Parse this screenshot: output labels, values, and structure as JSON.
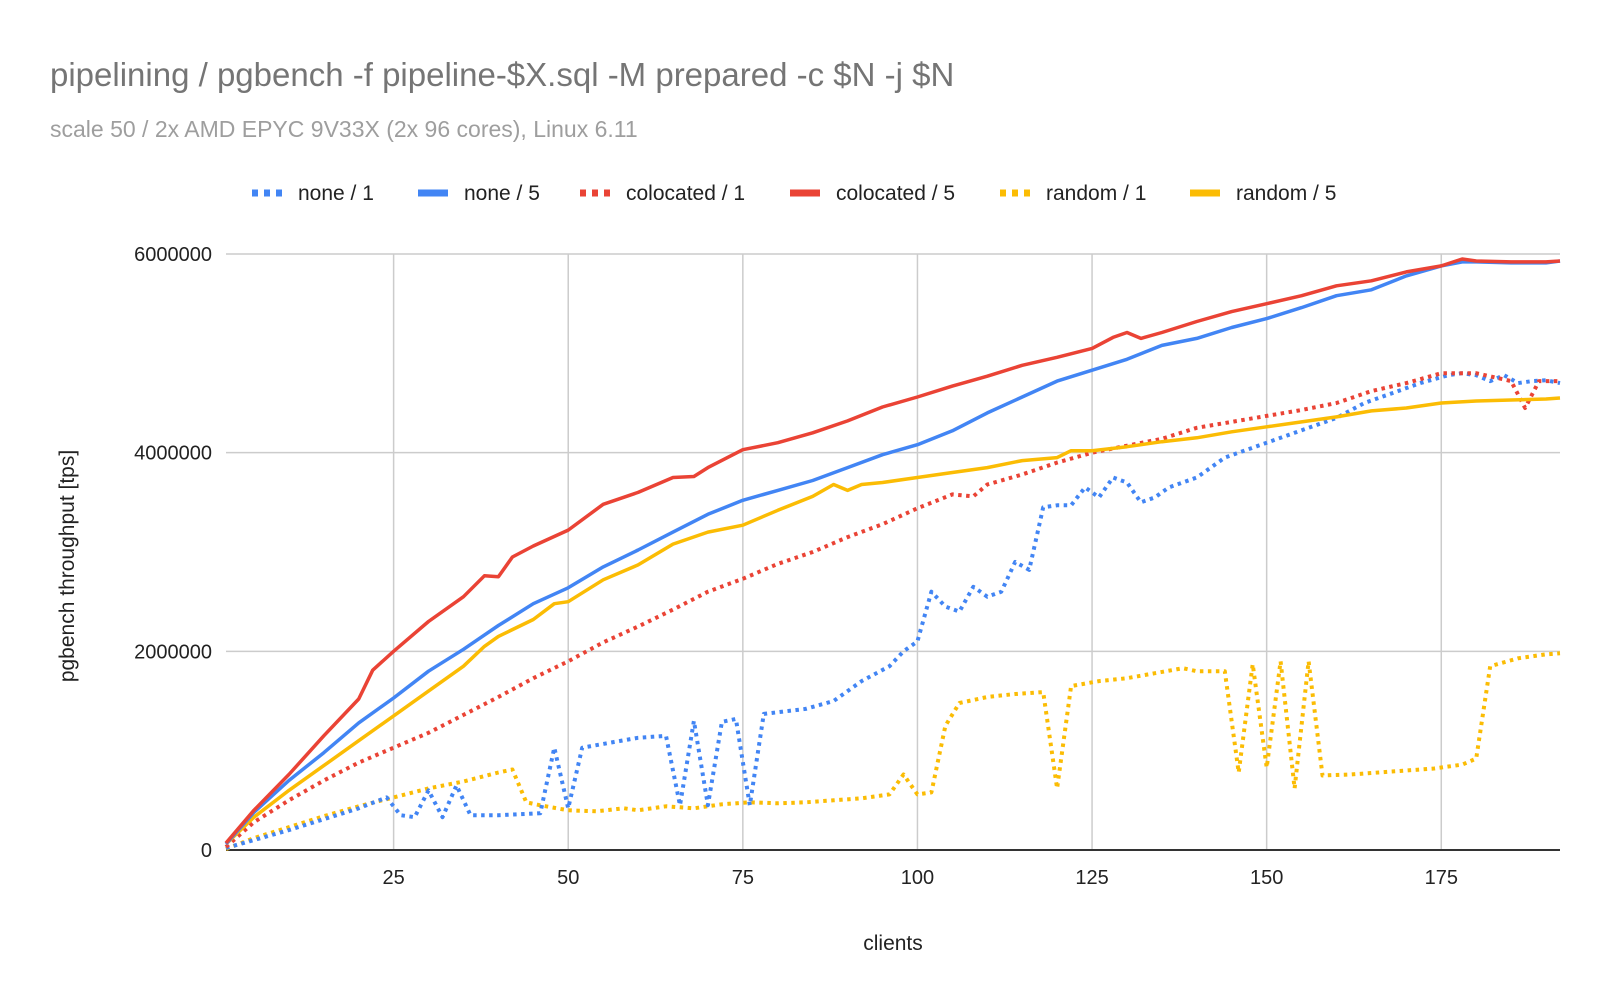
{
  "chart_data": {
    "type": "line",
    "title": "pipelining / pgbench -f pipeline-$X.sql -M prepared -c $N -j $N",
    "subtitle": "scale 50 / 2x AMD EPYC 9V33X (2x 96 cores), Linux 6.11",
    "xlabel": "clients",
    "ylabel": "pgbench throughput [tps]",
    "xlim": [
      1,
      192
    ],
    "ylim": [
      0,
      6000000
    ],
    "x_ticks": [
      25,
      50,
      75,
      100,
      125,
      150,
      175
    ],
    "x_tick_labels": [
      "25",
      "50",
      "75",
      "100",
      "125",
      "150",
      "175"
    ],
    "y_ticks": [
      0,
      2000000,
      4000000,
      6000000
    ],
    "y_tick_labels": [
      "0",
      "2000000",
      "4000000",
      "6000000"
    ],
    "grid": true,
    "legend_position": "top",
    "series": [
      {
        "name": "none / 1",
        "color": "#4285f4",
        "style": "dotted",
        "points": [
          [
            1,
            20000
          ],
          [
            10,
            200000
          ],
          [
            20,
            420000
          ],
          [
            24,
            530000
          ],
          [
            26,
            350000
          ],
          [
            28,
            330000
          ],
          [
            30,
            600000
          ],
          [
            32,
            330000
          ],
          [
            34,
            650000
          ],
          [
            36,
            350000
          ],
          [
            40,
            350000
          ],
          [
            46,
            370000
          ],
          [
            48,
            1030000
          ],
          [
            50,
            420000
          ],
          [
            52,
            1030000
          ],
          [
            56,
            1080000
          ],
          [
            60,
            1130000
          ],
          [
            64,
            1150000
          ],
          [
            66,
            450000
          ],
          [
            68,
            1300000
          ],
          [
            70,
            450000
          ],
          [
            72,
            1290000
          ],
          [
            74,
            1320000
          ],
          [
            76,
            450000
          ],
          [
            78,
            1370000
          ],
          [
            84,
            1420000
          ],
          [
            88,
            1500000
          ],
          [
            92,
            1700000
          ],
          [
            96,
            1850000
          ],
          [
            98,
            2000000
          ],
          [
            100,
            2100000
          ],
          [
            102,
            2600000
          ],
          [
            104,
            2450000
          ],
          [
            106,
            2400000
          ],
          [
            108,
            2650000
          ],
          [
            110,
            2550000
          ],
          [
            112,
            2600000
          ],
          [
            114,
            2900000
          ],
          [
            116,
            2820000
          ],
          [
            118,
            3450000
          ],
          [
            120,
            3470000
          ],
          [
            122,
            3470000
          ],
          [
            124,
            3650000
          ],
          [
            126,
            3550000
          ],
          [
            128,
            3750000
          ],
          [
            130,
            3700000
          ],
          [
            132,
            3500000
          ],
          [
            134,
            3550000
          ],
          [
            136,
            3650000
          ],
          [
            140,
            3750000
          ],
          [
            144,
            3950000
          ],
          [
            148,
            4050000
          ],
          [
            152,
            4150000
          ],
          [
            156,
            4250000
          ],
          [
            160,
            4350000
          ],
          [
            164,
            4500000
          ],
          [
            168,
            4600000
          ],
          [
            172,
            4700000
          ],
          [
            176,
            4780000
          ],
          [
            178,
            4800000
          ],
          [
            180,
            4780000
          ],
          [
            182,
            4720000
          ],
          [
            184,
            4780000
          ],
          [
            186,
            4700000
          ],
          [
            188,
            4720000
          ],
          [
            190,
            4730000
          ],
          [
            192,
            4700000
          ]
        ]
      },
      {
        "name": "none / 5",
        "color": "#4285f4",
        "style": "solid",
        "points": [
          [
            1,
            60000
          ],
          [
            5,
            380000
          ],
          [
            10,
            700000
          ],
          [
            15,
            980000
          ],
          [
            20,
            1280000
          ],
          [
            25,
            1530000
          ],
          [
            30,
            1800000
          ],
          [
            35,
            2020000
          ],
          [
            40,
            2260000
          ],
          [
            45,
            2480000
          ],
          [
            50,
            2640000
          ],
          [
            55,
            2850000
          ],
          [
            60,
            3020000
          ],
          [
            65,
            3200000
          ],
          [
            70,
            3380000
          ],
          [
            75,
            3520000
          ],
          [
            80,
            3620000
          ],
          [
            85,
            3720000
          ],
          [
            90,
            3850000
          ],
          [
            95,
            3980000
          ],
          [
            100,
            4080000
          ],
          [
            105,
            4220000
          ],
          [
            110,
            4400000
          ],
          [
            115,
            4560000
          ],
          [
            120,
            4720000
          ],
          [
            125,
            4830000
          ],
          [
            130,
            4940000
          ],
          [
            135,
            5080000
          ],
          [
            140,
            5150000
          ],
          [
            145,
            5260000
          ],
          [
            150,
            5350000
          ],
          [
            155,
            5460000
          ],
          [
            160,
            5580000
          ],
          [
            165,
            5640000
          ],
          [
            170,
            5780000
          ],
          [
            175,
            5880000
          ],
          [
            178,
            5920000
          ],
          [
            180,
            5920000
          ],
          [
            185,
            5910000
          ],
          [
            190,
            5910000
          ],
          [
            192,
            5930000
          ]
        ]
      },
      {
        "name": "colocated / 1",
        "color": "#ea4335",
        "style": "dotted",
        "points": [
          [
            1,
            30000
          ],
          [
            5,
            280000
          ],
          [
            10,
            500000
          ],
          [
            15,
            700000
          ],
          [
            20,
            880000
          ],
          [
            25,
            1030000
          ],
          [
            30,
            1180000
          ],
          [
            35,
            1360000
          ],
          [
            40,
            1540000
          ],
          [
            45,
            1730000
          ],
          [
            50,
            1900000
          ],
          [
            55,
            2090000
          ],
          [
            60,
            2250000
          ],
          [
            65,
            2420000
          ],
          [
            70,
            2600000
          ],
          [
            75,
            2730000
          ],
          [
            80,
            2880000
          ],
          [
            85,
            3000000
          ],
          [
            90,
            3150000
          ],
          [
            95,
            3280000
          ],
          [
            100,
            3440000
          ],
          [
            105,
            3580000
          ],
          [
            108,
            3560000
          ],
          [
            110,
            3680000
          ],
          [
            115,
            3780000
          ],
          [
            120,
            3900000
          ],
          [
            125,
            4000000
          ],
          [
            130,
            4070000
          ],
          [
            135,
            4140000
          ],
          [
            140,
            4250000
          ],
          [
            145,
            4310000
          ],
          [
            150,
            4370000
          ],
          [
            155,
            4430000
          ],
          [
            160,
            4500000
          ],
          [
            165,
            4620000
          ],
          [
            170,
            4700000
          ],
          [
            175,
            4800000
          ],
          [
            180,
            4800000
          ],
          [
            185,
            4720000
          ],
          [
            187,
            4450000
          ],
          [
            189,
            4720000
          ],
          [
            192,
            4720000
          ]
        ]
      },
      {
        "name": "colocated / 5",
        "color": "#ea4335",
        "style": "solid",
        "points": [
          [
            1,
            70000
          ],
          [
            5,
            400000
          ],
          [
            10,
            760000
          ],
          [
            15,
            1150000
          ],
          [
            20,
            1520000
          ],
          [
            22,
            1810000
          ],
          [
            25,
            2000000
          ],
          [
            30,
            2300000
          ],
          [
            35,
            2550000
          ],
          [
            38,
            2760000
          ],
          [
            40,
            2750000
          ],
          [
            42,
            2950000
          ],
          [
            45,
            3060000
          ],
          [
            50,
            3220000
          ],
          [
            55,
            3480000
          ],
          [
            60,
            3600000
          ],
          [
            65,
            3750000
          ],
          [
            68,
            3760000
          ],
          [
            70,
            3850000
          ],
          [
            75,
            4030000
          ],
          [
            80,
            4100000
          ],
          [
            85,
            4200000
          ],
          [
            90,
            4320000
          ],
          [
            95,
            4460000
          ],
          [
            100,
            4560000
          ],
          [
            105,
            4670000
          ],
          [
            110,
            4770000
          ],
          [
            115,
            4880000
          ],
          [
            120,
            4960000
          ],
          [
            125,
            5050000
          ],
          [
            128,
            5160000
          ],
          [
            130,
            5210000
          ],
          [
            132,
            5150000
          ],
          [
            135,
            5210000
          ],
          [
            140,
            5320000
          ],
          [
            145,
            5420000
          ],
          [
            150,
            5500000
          ],
          [
            155,
            5580000
          ],
          [
            160,
            5680000
          ],
          [
            165,
            5730000
          ],
          [
            170,
            5820000
          ],
          [
            175,
            5880000
          ],
          [
            178,
            5950000
          ],
          [
            180,
            5930000
          ],
          [
            185,
            5920000
          ],
          [
            190,
            5920000
          ],
          [
            192,
            5930000
          ]
        ]
      },
      {
        "name": "random / 1",
        "color": "#fbbc04",
        "style": "dotted",
        "points": [
          [
            1,
            10000
          ],
          [
            5,
            120000
          ],
          [
            10,
            230000
          ],
          [
            15,
            340000
          ],
          [
            20,
            440000
          ],
          [
            25,
            530000
          ],
          [
            30,
            620000
          ],
          [
            35,
            690000
          ],
          [
            40,
            780000
          ],
          [
            42,
            810000
          ],
          [
            44,
            480000
          ],
          [
            46,
            450000
          ],
          [
            50,
            400000
          ],
          [
            54,
            390000
          ],
          [
            58,
            420000
          ],
          [
            60,
            400000
          ],
          [
            64,
            440000
          ],
          [
            68,
            420000
          ],
          [
            72,
            460000
          ],
          [
            76,
            480000
          ],
          [
            80,
            470000
          ],
          [
            84,
            480000
          ],
          [
            88,
            500000
          ],
          [
            92,
            520000
          ],
          [
            96,
            560000
          ],
          [
            98,
            760000
          ],
          [
            100,
            560000
          ],
          [
            102,
            580000
          ],
          [
            104,
            1250000
          ],
          [
            106,
            1480000
          ],
          [
            110,
            1540000
          ],
          [
            114,
            1570000
          ],
          [
            118,
            1590000
          ],
          [
            120,
            620000
          ],
          [
            122,
            1650000
          ],
          [
            126,
            1700000
          ],
          [
            130,
            1730000
          ],
          [
            134,
            1780000
          ],
          [
            138,
            1830000
          ],
          [
            140,
            1800000
          ],
          [
            144,
            1800000
          ],
          [
            146,
            780000
          ],
          [
            148,
            1870000
          ],
          [
            150,
            830000
          ],
          [
            152,
            1900000
          ],
          [
            154,
            620000
          ],
          [
            156,
            1900000
          ],
          [
            158,
            750000
          ],
          [
            162,
            760000
          ],
          [
            166,
            780000
          ],
          [
            170,
            800000
          ],
          [
            174,
            820000
          ],
          [
            178,
            860000
          ],
          [
            180,
            920000
          ],
          [
            182,
            1850000
          ],
          [
            186,
            1930000
          ],
          [
            190,
            1970000
          ],
          [
            192,
            1980000
          ]
        ]
      },
      {
        "name": "random / 5",
        "color": "#fbbc04",
        "style": "solid",
        "points": [
          [
            1,
            60000
          ],
          [
            5,
            330000
          ],
          [
            10,
            600000
          ],
          [
            15,
            850000
          ],
          [
            20,
            1100000
          ],
          [
            25,
            1350000
          ],
          [
            30,
            1600000
          ],
          [
            35,
            1850000
          ],
          [
            38,
            2050000
          ],
          [
            40,
            2150000
          ],
          [
            45,
            2320000
          ],
          [
            48,
            2480000
          ],
          [
            50,
            2500000
          ],
          [
            55,
            2720000
          ],
          [
            60,
            2870000
          ],
          [
            65,
            3080000
          ],
          [
            70,
            3200000
          ],
          [
            75,
            3270000
          ],
          [
            80,
            3420000
          ],
          [
            85,
            3560000
          ],
          [
            88,
            3680000
          ],
          [
            90,
            3620000
          ],
          [
            92,
            3680000
          ],
          [
            95,
            3700000
          ],
          [
            100,
            3750000
          ],
          [
            105,
            3800000
          ],
          [
            110,
            3850000
          ],
          [
            115,
            3920000
          ],
          [
            120,
            3950000
          ],
          [
            122,
            4020000
          ],
          [
            125,
            4020000
          ],
          [
            130,
            4060000
          ],
          [
            135,
            4110000
          ],
          [
            140,
            4150000
          ],
          [
            145,
            4210000
          ],
          [
            150,
            4260000
          ],
          [
            155,
            4310000
          ],
          [
            160,
            4360000
          ],
          [
            165,
            4420000
          ],
          [
            170,
            4450000
          ],
          [
            175,
            4500000
          ],
          [
            180,
            4520000
          ],
          [
            185,
            4530000
          ],
          [
            190,
            4540000
          ],
          [
            192,
            4550000
          ]
        ]
      }
    ]
  }
}
